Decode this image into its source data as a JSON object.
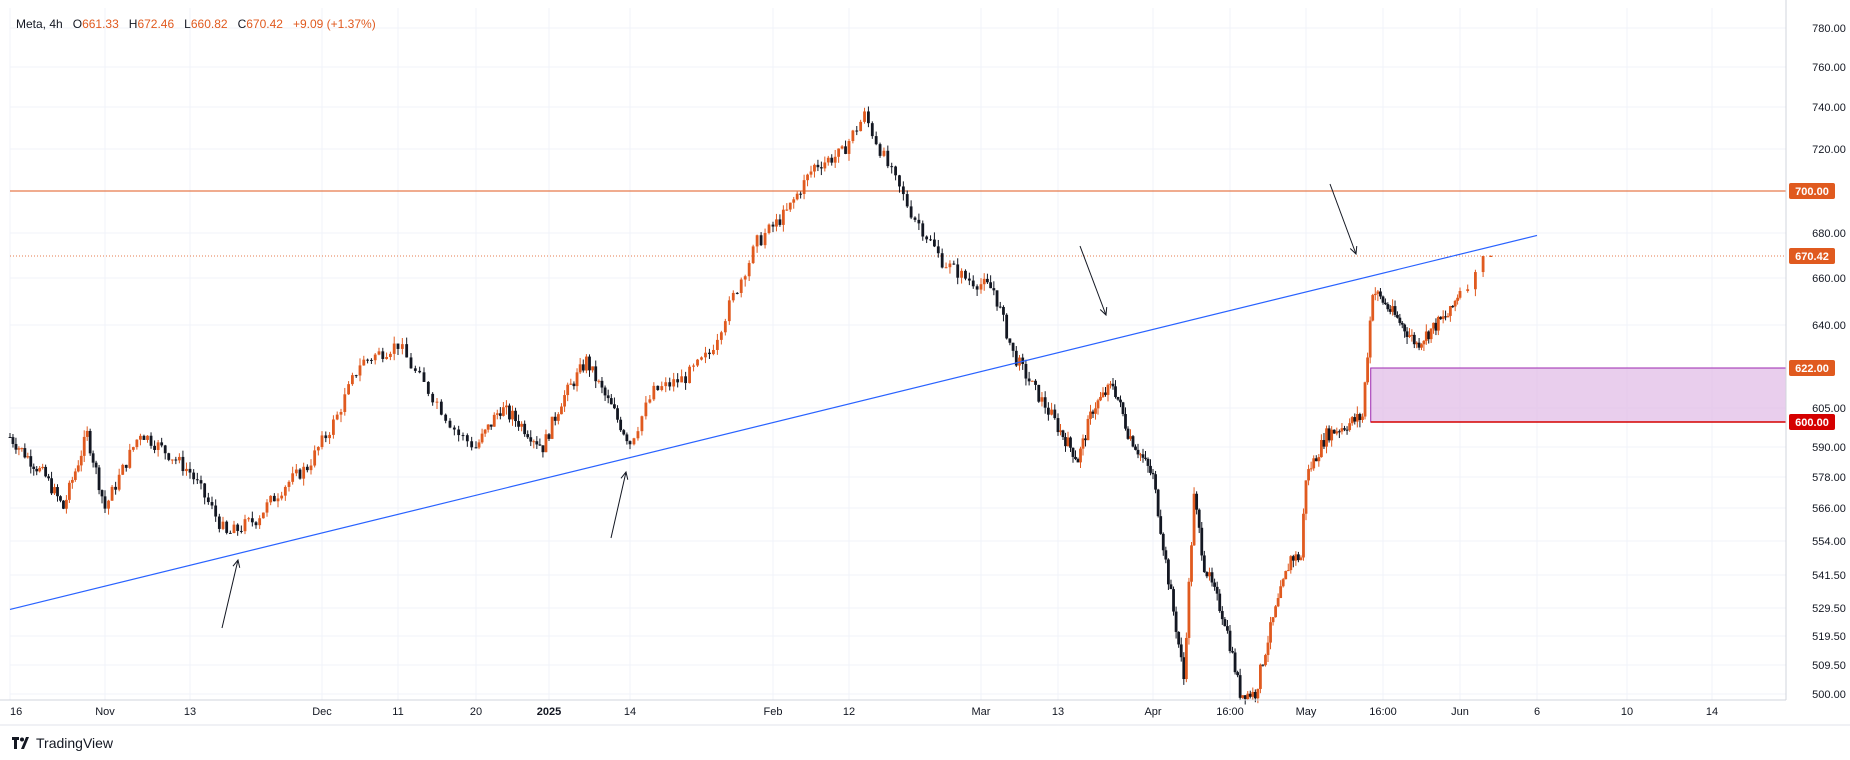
{
  "header": {
    "symbol": "Meta, 4h",
    "open_label": "O",
    "open": "661.33",
    "high_label": "H",
    "high": "672.46",
    "low_label": "L",
    "low": "660.82",
    "close_label": "C",
    "close": "670.42",
    "change": "+9.09 (+1.37%)"
  },
  "branding": {
    "name": "TradingView"
  },
  "colors": {
    "up": "#e05a1f",
    "down": "#131722",
    "trendline": "#2962ff",
    "resistance": "#e05a1f",
    "zone_fill": "#e1bee7",
    "zone_border": "#9c27b0",
    "zone_bottom": "#d50000",
    "grid": "#f0f3fa"
  },
  "chart_data": {
    "type": "candlestick",
    "symbol": "Meta",
    "interval": "4h",
    "y_axis_ticks": [
      500.0,
      509.5,
      519.5,
      529.5,
      541.5,
      554.0,
      566.0,
      578.0,
      590.0,
      605.0,
      640.0,
      660.0,
      680.0,
      720.0,
      740.0,
      760.0,
      780.0
    ],
    "x_axis_labels": [
      "16",
      "Nov",
      "13",
      "Dec",
      "11",
      "20",
      "2025",
      "14",
      "Feb",
      "12",
      "Mar",
      "13",
      "Apr",
      "16:00",
      "May",
      "16:00",
      "Jun",
      "6",
      "10",
      "14"
    ],
    "price_tags": [
      {
        "label": "700.00",
        "value": 700.0,
        "kind": "resistance"
      },
      {
        "label": "670.42",
        "value": 670.42,
        "kind": "last"
      },
      {
        "label": "622.00",
        "value": 622.0,
        "kind": "zone_top"
      },
      {
        "label": "600.00",
        "value": 600.0,
        "kind": "zone_bottom"
      }
    ],
    "horizontal_lines": [
      {
        "value": 700.0,
        "style": "solid"
      },
      {
        "value": 670.42,
        "style": "dotted"
      }
    ],
    "zone": {
      "top": 622.0,
      "bottom": 600.0
    },
    "trendline": {
      "from": {
        "date": "Oct 16",
        "price": 529
      },
      "to": {
        "date": "Jun 6",
        "price": 679
      }
    },
    "arrows": [
      {
        "direction": "up",
        "near": "Nov 18"
      },
      {
        "direction": "up",
        "near": "Jan 14"
      },
      {
        "direction": "down",
        "near": "Mar 20"
      },
      {
        "direction": "down",
        "near": "May 16"
      }
    ],
    "path_points": [
      {
        "x": "Oct 16",
        "y": 594
      },
      {
        "x": "Oct 22",
        "y": 578
      },
      {
        "x": "Oct 25",
        "y": 566
      },
      {
        "x": "Oct 29",
        "y": 595
      },
      {
        "x": "Nov 1",
        "y": 566
      },
      {
        "x": "Nov 6",
        "y": 596
      },
      {
        "x": "Nov 11",
        "y": 585
      },
      {
        "x": "Nov 13",
        "y": 580
      },
      {
        "x": "Nov 18",
        "y": 556
      },
      {
        "x": "Nov 22",
        "y": 562
      },
      {
        "x": "Nov 26",
        "y": 575
      },
      {
        "x": "Nov 29",
        "y": 582
      },
      {
        "x": "Dec 3",
        "y": 602
      },
      {
        "x": "Dec 6",
        "y": 624
      },
      {
        "x": "Dec 11",
        "y": 632
      },
      {
        "x": "Dec 13",
        "y": 620
      },
      {
        "x": "Dec 18",
        "y": 595
      },
      {
        "x": "Dec 20",
        "y": 590
      },
      {
        "x": "Dec 24",
        "y": 605
      },
      {
        "x": "Dec 27",
        "y": 600
      },
      {
        "x": "Dec 31",
        "y": 590
      },
      {
        "x": "Jan 3",
        "y": 608
      },
      {
        "x": "Jan 7",
        "y": 625
      },
      {
        "x": "Jan 10",
        "y": 610
      },
      {
        "x": "Jan 14",
        "y": 592
      },
      {
        "x": "Jan 17",
        "y": 612
      },
      {
        "x": "Jan 21",
        "y": 618
      },
      {
        "x": "Jan 24",
        "y": 628
      },
      {
        "x": "Jan 27",
        "y": 652
      },
      {
        "x": "Jan 30",
        "y": 676
      },
      {
        "x": "Feb 3",
        "y": 690
      },
      {
        "x": "Feb 7",
        "y": 712
      },
      {
        "x": "Feb 11",
        "y": 718
      },
      {
        "x": "Feb 14",
        "y": 736
      },
      {
        "x": "Feb 17",
        "y": 712
      },
      {
        "x": "Feb 20",
        "y": 690
      },
      {
        "x": "Feb 24",
        "y": 668
      },
      {
        "x": "Feb 27",
        "y": 660
      },
      {
        "x": "Mar 3",
        "y": 655
      },
      {
        "x": "Mar 6",
        "y": 628
      },
      {
        "x": "Mar 10",
        "y": 610
      },
      {
        "x": "Mar 13",
        "y": 598
      },
      {
        "x": "Mar 17",
        "y": 585
      },
      {
        "x": "Mar 20",
        "y": 605
      },
      {
        "x": "Mar 24",
        "y": 615
      },
      {
        "x": "Mar 27",
        "y": 596
      },
      {
        "x": "Apr 1",
        "y": 578
      },
      {
        "x": "Apr 4",
        "y": 540
      },
      {
        "x": "Apr 7",
        "y": 505
      },
      {
        "x": "Apr 9",
        "y": 570
      },
      {
        "x": "Apr 11",
        "y": 545
      },
      {
        "x": "Apr 15",
        "y": 525
      },
      {
        "x": "Apr 18",
        "y": 500
      },
      {
        "x": "Apr 21",
        "y": 500
      },
      {
        "x": "Apr 24",
        "y": 522
      },
      {
        "x": "Apr 28",
        "y": 548
      },
      {
        "x": "Apr 30",
        "y": 548
      },
      {
        "x": "May 1",
        "y": 578
      },
      {
        "x": "May 5",
        "y": 595
      },
      {
        "x": "May 8",
        "y": 598
      },
      {
        "x": "May 12",
        "y": 602
      },
      {
        "x": "May 14",
        "y": 655
      },
      {
        "x": "May 16",
        "y": 650
      },
      {
        "x": "May 20",
        "y": 640
      },
      {
        "x": "May 23",
        "y": 632
      },
      {
        "x": "May 27",
        "y": 640
      },
      {
        "x": "May 30",
        "y": 645
      },
      {
        "x": "Jun 2",
        "y": 661
      },
      {
        "x": "Jun 3",
        "y": 670.42
      }
    ]
  }
}
